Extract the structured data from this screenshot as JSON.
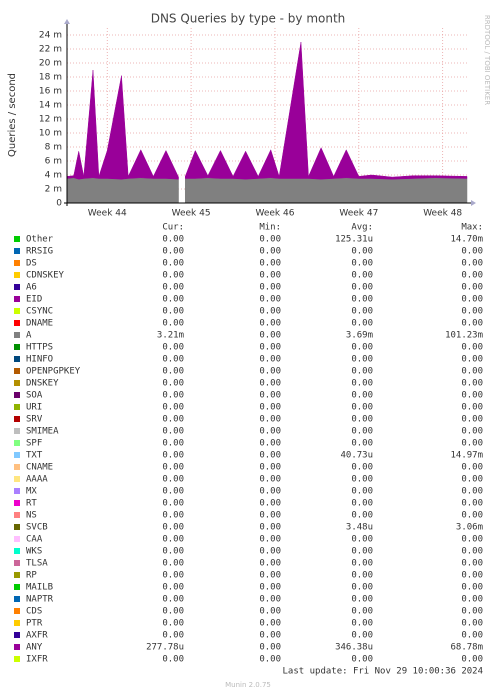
{
  "chart_data": {
    "type": "stacked-area",
    "title": "DNS Queries by type - by month",
    "y_label": "Queries / second",
    "side_text": "RRDTOOL / TOBI OETIKER",
    "columns": [
      "Cur:",
      "Min:",
      "Avg:",
      "Max:"
    ],
    "last_update": "Last update: Fri Nov 29 10:00:36 2024",
    "footer": "Munin 2.0.75",
    "grid": true,
    "xlim": [
      43.52,
      48.29
    ],
    "xticks": [
      {
        "value": 44,
        "label": "Week 44"
      },
      {
        "value": 45,
        "label": "Week 45"
      },
      {
        "value": 46,
        "label": "Week 46"
      },
      {
        "value": 47,
        "label": "Week 47"
      },
      {
        "value": 48,
        "label": "Week 48"
      }
    ],
    "ylim": [
      0,
      0.025
    ],
    "yticks": [
      0,
      {
        "value": 0.002,
        "label": "2 m"
      },
      {
        "value": 0.004,
        "label": "4 m"
      },
      {
        "value": 0.006,
        "label": "6 m"
      },
      {
        "value": 0.008,
        "label": "8 m"
      },
      {
        "value": 0.01,
        "label": "10 m"
      },
      {
        "value": 0.012,
        "label": "12 m"
      },
      {
        "value": 0.014,
        "label": "14 m"
      },
      {
        "value": 0.016,
        "label": "16 m"
      },
      {
        "value": 0.018,
        "label": "18 m"
      },
      {
        "value": 0.02,
        "label": "20 m"
      },
      {
        "value": 0.022,
        "label": "22 m"
      },
      {
        "value": 0.024,
        "label": "24 m"
      }
    ],
    "x": [
      43.52,
      43.6,
      43.66,
      43.72,
      43.83,
      43.9,
      44.0,
      44.17,
      44.25,
      44.4,
      44.55,
      44.7,
      44.85,
      44.89,
      44.93,
      45.05,
      45.2,
      45.35,
      45.5,
      45.65,
      45.8,
      45.95,
      46.05,
      46.31,
      46.4,
      46.55,
      46.7,
      46.85,
      47.0,
      47.15,
      47.4,
      47.65,
      47.9,
      48.29
    ],
    "series": [
      {
        "name": "Other",
        "color": "#00cc00",
        "cur": "0.00",
        "min": "0.00",
        "avg": "125.31u",
        "max": "14.70m"
      },
      {
        "name": "RRSIG",
        "color": "#0066b3",
        "cur": "0.00",
        "min": "0.00",
        "avg": "0.00",
        "max": "0.00"
      },
      {
        "name": "DS",
        "color": "#ff8000",
        "cur": "0.00",
        "min": "0.00",
        "avg": "0.00",
        "max": "0.00"
      },
      {
        "name": "CDNSKEY",
        "color": "#ffcc00",
        "cur": "0.00",
        "min": "0.00",
        "avg": "0.00",
        "max": "0.00"
      },
      {
        "name": "A6",
        "color": "#330099",
        "cur": "0.00",
        "min": "0.00",
        "avg": "0.00",
        "max": "0.00"
      },
      {
        "name": "EID",
        "color": "#990099",
        "cur": "0.00",
        "min": "0.00",
        "avg": "0.00",
        "max": "0.00"
      },
      {
        "name": "CSYNC",
        "color": "#ccff00",
        "cur": "0.00",
        "min": "0.00",
        "avg": "0.00",
        "max": "0.00"
      },
      {
        "name": "DNAME",
        "color": "#ff0000",
        "cur": "0.00",
        "min": "0.00",
        "avg": "0.00",
        "max": "0.00"
      },
      {
        "name": "A",
        "color": "#808080",
        "cur": "3.21m",
        "min": "0.00",
        "avg": "3.69m",
        "max": "101.23m",
        "values": [
          0.0035,
          0.0036,
          0.0034,
          0.0035,
          0.0036,
          0.0035,
          0.0035,
          0.0034,
          0.0035,
          0.0036,
          0.0035,
          0.0035,
          0.0034,
          null,
          0.0035,
          0.0035,
          0.0036,
          0.0035,
          0.0035,
          0.0034,
          0.0035,
          0.0036,
          0.0035,
          0.0035,
          0.0035,
          0.0034,
          0.0035,
          0.0036,
          0.0035,
          0.0035,
          0.0034,
          0.0035,
          0.0036,
          0.0035
        ]
      },
      {
        "name": "HTTPS",
        "color": "#008f00",
        "cur": "0.00",
        "min": "0.00",
        "avg": "0.00",
        "max": "0.00"
      },
      {
        "name": "HINFO",
        "color": "#00487d",
        "cur": "0.00",
        "min": "0.00",
        "avg": "0.00",
        "max": "0.00"
      },
      {
        "name": "OPENPGPKEY",
        "color": "#b35a00",
        "cur": "0.00",
        "min": "0.00",
        "avg": "0.00",
        "max": "0.00"
      },
      {
        "name": "DNSKEY",
        "color": "#b38f00",
        "cur": "0.00",
        "min": "0.00",
        "avg": "0.00",
        "max": "0.00"
      },
      {
        "name": "SOA",
        "color": "#6b006b",
        "cur": "0.00",
        "min": "0.00",
        "avg": "0.00",
        "max": "0.00"
      },
      {
        "name": "URI",
        "color": "#8fb300",
        "cur": "0.00",
        "min": "0.00",
        "avg": "0.00",
        "max": "0.00"
      },
      {
        "name": "SRV",
        "color": "#b30000",
        "cur": "0.00",
        "min": "0.00",
        "avg": "0.00",
        "max": "0.00"
      },
      {
        "name": "SMIMEA",
        "color": "#bebebe",
        "cur": "0.00",
        "min": "0.00",
        "avg": "0.00",
        "max": "0.00"
      },
      {
        "name": "SPF",
        "color": "#80ff80",
        "cur": "0.00",
        "min": "0.00",
        "avg": "0.00",
        "max": "0.00"
      },
      {
        "name": "TXT",
        "color": "#80c9ff",
        "cur": "0.00",
        "min": "0.00",
        "avg": "40.73u",
        "max": "14.97m"
      },
      {
        "name": "CNAME",
        "color": "#ffc080",
        "cur": "0.00",
        "min": "0.00",
        "avg": "0.00",
        "max": "0.00"
      },
      {
        "name": "AAAA",
        "color": "#ffe680",
        "cur": "0.00",
        "min": "0.00",
        "avg": "0.00",
        "max": "0.00"
      },
      {
        "name": "MX",
        "color": "#aa80ff",
        "cur": "0.00",
        "min": "0.00",
        "avg": "0.00",
        "max": "0.00"
      },
      {
        "name": "RT",
        "color": "#ee00cc",
        "cur": "0.00",
        "min": "0.00",
        "avg": "0.00",
        "max": "0.00"
      },
      {
        "name": "NS",
        "color": "#ff8080",
        "cur": "0.00",
        "min": "0.00",
        "avg": "0.00",
        "max": "0.00"
      },
      {
        "name": "SVCB",
        "color": "#666600",
        "cur": "0.00",
        "min": "0.00",
        "avg": "3.48u",
        "max": "3.06m"
      },
      {
        "name": "CAA",
        "color": "#ffbfff",
        "cur": "0.00",
        "min": "0.00",
        "avg": "0.00",
        "max": "0.00"
      },
      {
        "name": "WKS",
        "color": "#00ffcc",
        "cur": "0.00",
        "min": "0.00",
        "avg": "0.00",
        "max": "0.00"
      },
      {
        "name": "TLSA",
        "color": "#cc6699",
        "cur": "0.00",
        "min": "0.00",
        "avg": "0.00",
        "max": "0.00"
      },
      {
        "name": "RP",
        "color": "#999900",
        "cur": "0.00",
        "min": "0.00",
        "avg": "0.00",
        "max": "0.00"
      },
      {
        "name": "MAILB",
        "color": "#00cc00",
        "cur": "0.00",
        "min": "0.00",
        "avg": "0.00",
        "max": "0.00"
      },
      {
        "name": "NAPTR",
        "color": "#0066b3",
        "cur": "0.00",
        "min": "0.00",
        "avg": "0.00",
        "max": "0.00"
      },
      {
        "name": "CDS",
        "color": "#ff8000",
        "cur": "0.00",
        "min": "0.00",
        "avg": "0.00",
        "max": "0.00"
      },
      {
        "name": "PTR",
        "color": "#ffcc00",
        "cur": "0.00",
        "min": "0.00",
        "avg": "0.00",
        "max": "0.00"
      },
      {
        "name": "AXFR",
        "color": "#330099",
        "cur": "0.00",
        "min": "0.00",
        "avg": "0.00",
        "max": "0.00"
      },
      {
        "name": "ANY",
        "color": "#990099",
        "cur": "277.78u",
        "min": "0.00",
        "avg": "346.38u",
        "max": "68.78m",
        "values": [
          0.0003,
          0.0003,
          0.004,
          0.0003,
          0.0154,
          0.0003,
          0.004,
          0.0148,
          0.0003,
          0.004,
          0.0003,
          0.004,
          0.0003,
          null,
          0.0003,
          0.004,
          0.0003,
          0.004,
          0.0003,
          0.004,
          0.0003,
          0.004,
          0.0003,
          0.0195,
          0.0003,
          0.0045,
          0.0003,
          0.004,
          0.0003,
          0.0005,
          0.0003,
          0.0004,
          0.0003,
          0.0003
        ]
      },
      {
        "name": "IXFR",
        "color": "#ccff00",
        "cur": "0.00",
        "min": "0.00",
        "avg": "0.00",
        "max": "0.00"
      }
    ]
  }
}
